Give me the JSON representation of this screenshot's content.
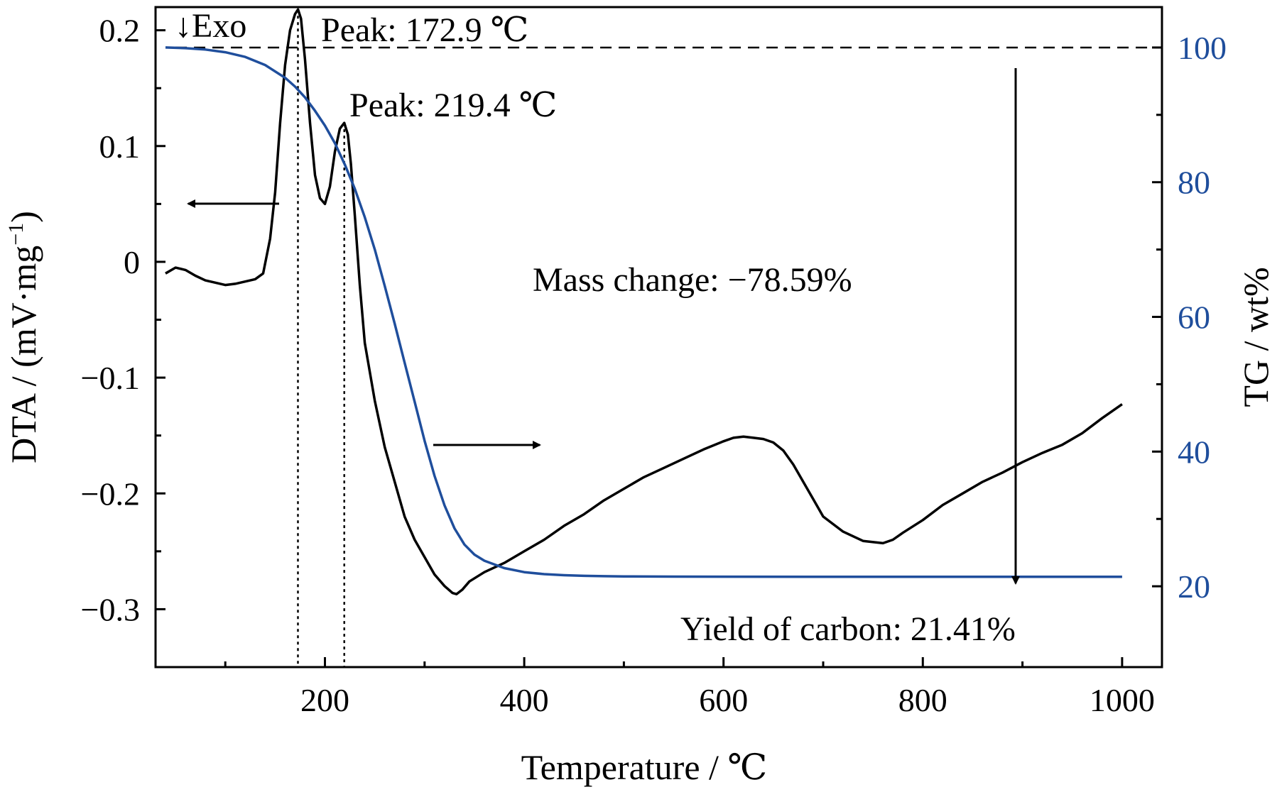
{
  "chart_data": {
    "type": "line",
    "xlabel": "Temperature / ℃",
    "ylabel_left": "DTA  / (mV·mg",
    "ylabel_left_sup": "−1",
    "ylabel_left_close": ")",
    "ylabel_right": "TG / wt%",
    "xlim": [
      30,
      1040
    ],
    "ylim_left": [
      -0.35,
      0.22
    ],
    "ylim_right": [
      8,
      106
    ],
    "x_ticks": [
      200,
      400,
      600,
      800,
      1000
    ],
    "x_tick_labels": [
      "200",
      "400",
      "600",
      "800",
      "1000"
    ],
    "x_minor_ticks": [
      100,
      300,
      500,
      700,
      900
    ],
    "y_left_ticks": [
      0.2,
      0.1,
      0,
      -0.1,
      -0.2,
      -0.3
    ],
    "y_left_tick_labels": [
      "0.2",
      "0.1",
      "0",
      "−0.1",
      "−0.2",
      "−0.3"
    ],
    "y_left_minor_ticks": [
      0.15,
      0.05,
      -0.05,
      -0.15,
      -0.25
    ],
    "y_right_ticks": [
      100,
      80,
      60,
      40,
      20
    ],
    "y_right_tick_labels": [
      "100",
      "80",
      "60",
      "40",
      "20"
    ],
    "y_right_minor_ticks": [
      90,
      70,
      50,
      30
    ],
    "colors": {
      "dta": "#000000",
      "tg": "#1f4e9c",
      "right_axis_labels": "#1f4e9c"
    },
    "series": [
      {
        "axis": "left",
        "color": "#000000",
        "x": [
          40,
          50,
          60,
          70,
          80,
          90,
          100,
          110,
          120,
          130,
          138,
          145,
          150,
          155,
          160,
          165,
          170,
          173,
          176,
          180,
          185,
          190,
          195,
          200,
          205,
          210,
          215,
          219.4,
          223,
          226,
          230,
          235,
          240,
          250,
          260,
          270,
          280,
          290,
          300,
          310,
          320,
          328,
          332,
          338,
          345,
          360,
          380,
          400,
          420,
          440,
          460,
          480,
          500,
          520,
          540,
          560,
          580,
          600,
          610,
          620,
          630,
          640,
          650,
          660,
          670,
          680,
          690,
          700,
          720,
          740,
          760,
          770,
          780,
          800,
          820,
          840,
          860,
          880,
          900,
          920,
          940,
          960,
          980,
          1000
        ],
        "values": [
          -0.01,
          -0.005,
          -0.007,
          -0.012,
          -0.016,
          -0.018,
          -0.02,
          -0.019,
          -0.017,
          -0.015,
          -0.01,
          0.02,
          0.06,
          0.12,
          0.17,
          0.2,
          0.214,
          0.218,
          0.21,
          0.175,
          0.12,
          0.075,
          0.055,
          0.05,
          0.065,
          0.095,
          0.115,
          0.12,
          0.11,
          0.085,
          0.04,
          -0.02,
          -0.07,
          -0.12,
          -0.16,
          -0.19,
          -0.22,
          -0.24,
          -0.255,
          -0.27,
          -0.28,
          -0.286,
          -0.287,
          -0.283,
          -0.276,
          -0.268,
          -0.26,
          -0.25,
          -0.24,
          -0.228,
          -0.218,
          -0.206,
          -0.196,
          -0.186,
          -0.178,
          -0.17,
          -0.162,
          -0.155,
          -0.152,
          -0.151,
          -0.152,
          -0.153,
          -0.156,
          -0.163,
          -0.175,
          -0.19,
          -0.205,
          -0.22,
          -0.233,
          -0.241,
          -0.243,
          -0.24,
          -0.234,
          -0.223,
          -0.21,
          -0.2,
          -0.19,
          -0.182,
          -0.173,
          -0.165,
          -0.158,
          -0.148,
          -0.135,
          -0.123
        ]
      },
      {
        "axis": "right",
        "color": "#1f4e9c",
        "x": [
          40,
          60,
          80,
          100,
          120,
          140,
          160,
          170,
          180,
          190,
          200,
          210,
          220,
          230,
          240,
          250,
          260,
          270,
          280,
          290,
          300,
          310,
          320,
          330,
          340,
          350,
          360,
          380,
          400,
          420,
          440,
          460,
          480,
          500,
          550,
          600,
          700,
          800,
          900,
          1000
        ],
        "values": [
          100,
          99.9,
          99.7,
          99.3,
          98.6,
          97.4,
          95.5,
          94.2,
          92.6,
          90.6,
          88.4,
          85.8,
          82.6,
          79,
          74.8,
          70,
          64.6,
          59,
          53.2,
          47.4,
          41.6,
          36.4,
          32,
          28.6,
          26.2,
          24.7,
          23.8,
          22.7,
          22.1,
          21.8,
          21.65,
          21.55,
          21.5,
          21.47,
          21.44,
          21.42,
          21.41,
          21.41,
          21.41,
          21.41
        ]
      }
    ],
    "reference_lines": [
      {
        "kind": "horizontal-dashed",
        "axis": "right",
        "y": 100,
        "x_from": 50,
        "x_to": 1040
      },
      {
        "kind": "vertical-dotted",
        "x": 172.9,
        "from_left_y": 0.218
      },
      {
        "kind": "vertical-dotted",
        "x": 219.4,
        "from_left_y": 0.12
      }
    ],
    "annotations": {
      "exo": "↓Exo",
      "peak1": "Peak: 172.9 ℃",
      "peak2": "Peak: 219.4 ℃",
      "mass_change": "Mass change: −78.59%",
      "yield": "Yield of carbon: 21.41%"
    }
  }
}
